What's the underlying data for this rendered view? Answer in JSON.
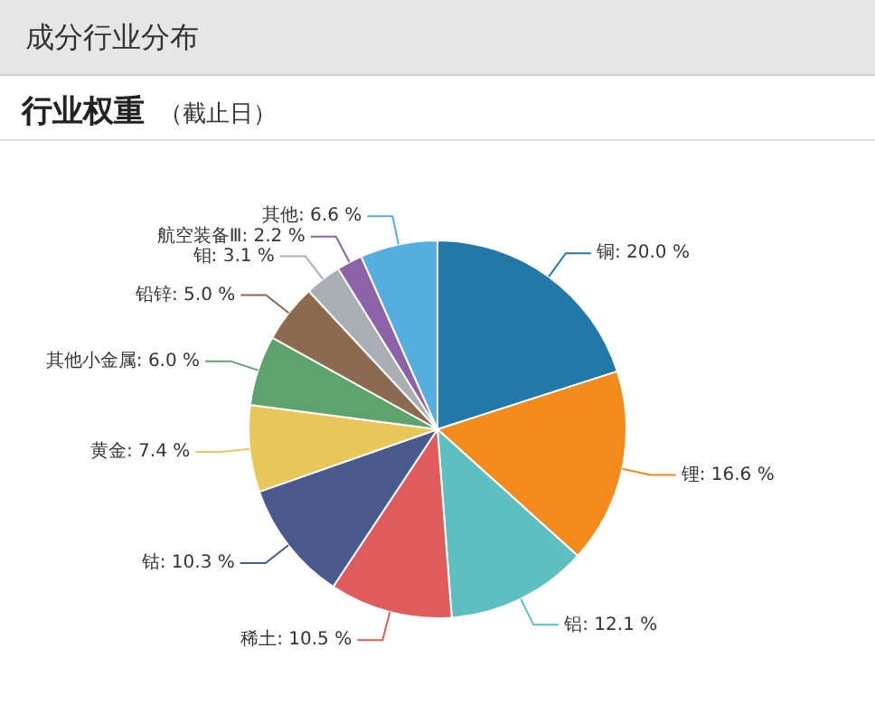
{
  "chart_data": {
    "type": "pie",
    "title": "行业权重",
    "subtitle": "（截止日）",
    "annotations": [
      "成分行业分布"
    ],
    "categories": [
      "铜",
      "锂",
      "铝",
      "稀土",
      "钴",
      "黄金",
      "其他小金属",
      "铅锌",
      "钼",
      "航空装备Ⅲ",
      "其他"
    ],
    "values": [
      20.0,
      16.6,
      12.1,
      10.5,
      10.3,
      7.4,
      6.0,
      5.0,
      3.1,
      2.2,
      6.6
    ],
    "value_labels": [
      "20.0 %",
      "16.6 %",
      "12.1 %",
      "10.5 %",
      "10.3 %",
      "7.4 %",
      "6.0 %",
      "5.0 %",
      "3.1 %",
      "2.2 %",
      "6.6 %"
    ],
    "colors": [
      "#2278a6",
      "#f28a1c",
      "#5dbfbf",
      "#e05c5c",
      "#4a5a8e",
      "#e8c65a",
      "#5ea36e",
      "#8b6a4f",
      "#a8aeb3",
      "#8c62a8",
      "#56aee0"
    ],
    "legend": false
  }
}
